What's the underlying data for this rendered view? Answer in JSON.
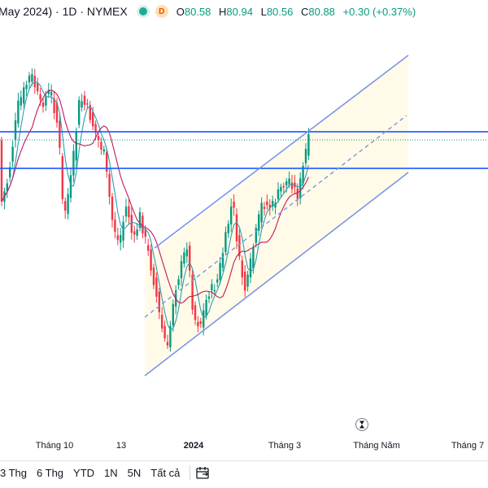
{
  "header": {
    "symbol_text": "May 2024) · 1D · NYMEX",
    "market_badge": "D",
    "ohlc": {
      "open_label": "O",
      "open": "80.58",
      "high_label": "H",
      "high": "80.94",
      "low_label": "L",
      "low": "80.56",
      "close_label": "C",
      "close": "80.88",
      "change": "+0.30 (+0.37%)"
    }
  },
  "xaxis": {
    "labels": [
      "Tháng 10",
      "13",
      "2024",
      "Tháng 3",
      "Tháng Năm",
      "Tháng 7"
    ]
  },
  "toolbar": {
    "timeframes": [
      "3 Thg",
      "6 Thg",
      "YTD",
      "1N",
      "5N",
      "Tất cả"
    ]
  },
  "colors": {
    "up": "#089981",
    "down": "#f23645",
    "hline": "#2962ff",
    "channel": "#7b95e6",
    "channel_fill": "#fffbe6",
    "ma_fast": "#2c9db5",
    "ma_slow": "#c2185b"
  },
  "icons": {
    "status": "green-dot-icon",
    "goto": "hourglass-icon",
    "date_range": "calendar-icon"
  }
}
